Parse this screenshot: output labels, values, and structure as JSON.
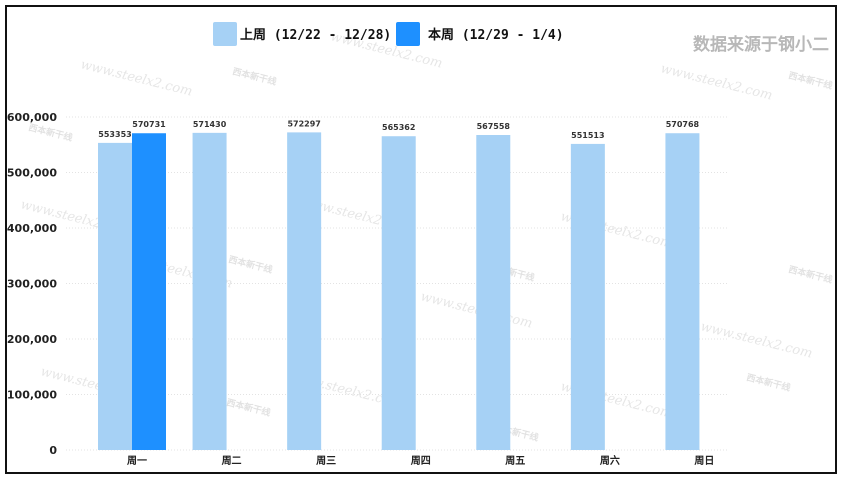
{
  "chart_data": {
    "type": "bar",
    "categories": [
      "周一",
      "周二",
      "周三",
      "周四",
      "周五",
      "周六",
      "周日"
    ],
    "series": [
      {
        "name": "上周 (12/22 - 12/28)",
        "color": "#a6d1f5",
        "values": [
          553353,
          571430,
          572297,
          565362,
          567558,
          551513,
          570768
        ]
      },
      {
        "name": "本周 (12/29 - 1/4)",
        "color": "#1e90ff",
        "values": [
          570731,
          null,
          null,
          null,
          null,
          null,
          null
        ]
      }
    ],
    "ylim": [
      0,
      600000
    ],
    "yticks": [
      "0",
      "100,000",
      "200,000",
      "300,000",
      "400,000",
      "500,000",
      "600,000"
    ],
    "ytick_values": [
      0,
      100000,
      200000,
      300000,
      400000,
      500000,
      600000
    ],
    "grid": true,
    "legend_position": "top"
  },
  "source_note": "数据来源于钢小二",
  "watermark": {
    "url": "www.steelx2.com",
    "brand": "西本新干线"
  }
}
